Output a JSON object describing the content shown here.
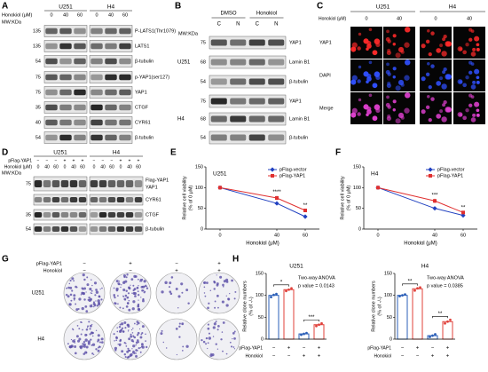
{
  "panel_labels": [
    "A",
    "B",
    "C",
    "D",
    "E",
    "F",
    "G",
    "H"
  ],
  "panel_a": {
    "cell_lines": [
      "U251",
      "H4"
    ],
    "treatment": "Honokiol (μM)",
    "doses": [
      "0",
      "40",
      "60",
      "0",
      "40",
      "60"
    ],
    "mw_label": "MW:KDa",
    "rows": [
      {
        "mw": "135",
        "label": "P-LATS1(Thr1079)"
      },
      {
        "mw": "135",
        "label": "LATS1"
      },
      {
        "mw": "54",
        "label": "β-tubulin"
      },
      {
        "mw": "75",
        "label": "p-YAP1(ser127)"
      },
      {
        "mw": "75",
        "label": "YAP1"
      },
      {
        "mw": "35",
        "label": "CTGF"
      },
      {
        "mw": "40",
        "label": "CYR61"
      },
      {
        "mw": "54",
        "label": "β-tubulin"
      }
    ]
  },
  "panel_b": {
    "conditions": [
      "DMSO",
      "Honokiol"
    ],
    "fractions": [
      "C",
      "N",
      "C",
      "N"
    ],
    "mw_label": "MW:KDa",
    "groups": [
      {
        "cell_line": "U251",
        "rows": [
          {
            "mw": "75",
            "label": "YAP1"
          },
          {
            "mw": "68",
            "label": "Lamin B1"
          },
          {
            "mw": "54",
            "label": "β-tubulin"
          }
        ]
      },
      {
        "cell_line": "H4",
        "rows": [
          {
            "mw": "75",
            "label": "YAP1"
          },
          {
            "mw": "68",
            "label": "Lamin B1"
          },
          {
            "mw": "54",
            "label": "β-tubulin"
          }
        ]
      }
    ]
  },
  "panel_c": {
    "cell_lines": [
      "U251",
      "H4"
    ],
    "treatment": "Honokiol (μM)",
    "doses": [
      "0",
      "40",
      "0",
      "40"
    ],
    "channels": [
      {
        "name": "YAP1",
        "color": "#e02020"
      },
      {
        "name": "DAPI",
        "color": "#2040ff"
      },
      {
        "name": "Merge",
        "color": "#000000"
      }
    ]
  },
  "panel_d": {
    "cell_lines": [
      "U251",
      "H4"
    ],
    "header": [
      {
        "label": "pFlag-YAP1",
        "signs": [
          "−",
          "−",
          "−",
          "+",
          "+",
          "+",
          "−",
          "−",
          "−",
          "+",
          "+",
          "+"
        ]
      },
      {
        "label": "Honokiol (μM)",
        "signs": [
          "0",
          "40",
          "60",
          "0",
          "40",
          "60",
          "0",
          "40",
          "60",
          "0",
          "40",
          "60"
        ]
      }
    ],
    "mw_label": "MW:KDa",
    "rows": [
      {
        "mw": "75",
        "labels": [
          "Flag-YAP1",
          "YAP1"
        ]
      },
      {
        "labels": [
          "CYR61"
        ]
      },
      {
        "mw": "35",
        "labels": [
          "CTGF"
        ]
      },
      {
        "mw": "54",
        "labels": [
          "β-tubulin"
        ]
      }
    ]
  },
  "panel_g": {
    "header": [
      {
        "label": "pFlag-YAP1",
        "signs": [
          "−",
          "+",
          "−",
          "+"
        ]
      },
      {
        "label": "Honokiol",
        "signs": [
          "−",
          "−",
          "+",
          "+"
        ]
      }
    ],
    "cell_lines": [
      "U251",
      "H4"
    ]
  },
  "chart_data": [
    {
      "type": "line",
      "title": "U251",
      "x": [
        0,
        40,
        60
      ],
      "xlim": [
        -10,
        70
      ],
      "xticks": [
        0,
        40,
        60
      ],
      "ylim": [
        0,
        150
      ],
      "yticks": [
        0,
        50,
        100,
        150
      ],
      "x_label": "Honokiol (μM)",
      "y_label": [
        "Relative cell viability",
        "(% of 0 μM)"
      ],
      "legend": "upper right",
      "series": [
        {
          "name": "pFlag-vector",
          "color": "#2040c0",
          "marker": "diamond",
          "values": [
            100,
            62,
            30
          ],
          "errors": [
            2,
            4,
            3
          ]
        },
        {
          "name": "pFlag-YAP1",
          "color": "#e03030",
          "marker": "square",
          "values": [
            100,
            75,
            45
          ],
          "errors": [
            2,
            5,
            3
          ]
        }
      ],
      "significance": [
        null,
        "****",
        "**"
      ]
    },
    {
      "type": "line",
      "title": "H4",
      "x": [
        0,
        40,
        60
      ],
      "xlim": [
        -10,
        70
      ],
      "xticks": [
        0,
        40,
        60
      ],
      "ylim": [
        0,
        150
      ],
      "yticks": [
        0,
        50,
        100,
        150
      ],
      "x_label": "Honokiol (μM)",
      "y_label": [
        "Relative cell viability",
        "(% of 0 μM)"
      ],
      "legend": "upper right",
      "series": [
        {
          "name": "pFlag-vector",
          "color": "#2040c0",
          "marker": "diamond",
          "values": [
            100,
            50,
            33
          ],
          "errors": [
            4,
            4,
            3
          ]
        },
        {
          "name": "pFlag-YAP1",
          "color": "#e03030",
          "marker": "square",
          "values": [
            100,
            68,
            40
          ],
          "errors": [
            4,
            5,
            3
          ]
        }
      ],
      "significance": [
        null,
        "***",
        "**"
      ]
    },
    {
      "type": "bar",
      "title": "U251",
      "values": [
        100,
        113,
        12,
        33
      ],
      "points": [
        [
          96,
          101,
          103
        ],
        [
          110,
          113,
          116
        ],
        [
          10,
          12,
          14
        ],
        [
          30,
          33,
          36
        ]
      ],
      "colors": [
        "#2b5fb8",
        "#e0403a",
        "#2b5fb8",
        "#e0403a"
      ],
      "ylim": [
        0,
        150
      ],
      "yticks": [
        0,
        50,
        100,
        150
      ],
      "y_label": [
        "Relative clone numbers",
        "(% of -/-)"
      ],
      "row_labels": [
        "pFlag-YAP1",
        "Honokiol"
      ],
      "rows": [
        [
          "−",
          "+",
          "−",
          "+"
        ],
        [
          "−",
          "−",
          "+",
          "+"
        ]
      ],
      "test": "Two-way ANOVA",
      "p_value": "p value = 0.0143",
      "significance": [
        "*",
        "***"
      ]
    },
    {
      "type": "bar",
      "title": "H4",
      "values": [
        100,
        115,
        8,
        40
      ],
      "points": [
        [
          98,
          100,
          102
        ],
        [
          111,
          116,
          118
        ],
        [
          5,
          8,
          11
        ],
        [
          36,
          40,
          44
        ]
      ],
      "colors": [
        "#2b5fb8",
        "#e0403a",
        "#2b5fb8",
        "#e0403a"
      ],
      "ylim": [
        0,
        150
      ],
      "yticks": [
        0,
        50,
        100,
        150
      ],
      "y_label": [
        "Relative clone numbers",
        "(% of -/-)"
      ],
      "row_labels": [
        "pFlag-YAP1",
        "Honokiol"
      ],
      "rows": [
        [
          "−",
          "+",
          "−",
          "+"
        ],
        [
          "−",
          "−",
          "+",
          "+"
        ]
      ],
      "test": "Two-way ANOVA",
      "p_value": "p value = 0.0385",
      "significance": [
        "**",
        "**"
      ]
    }
  ]
}
